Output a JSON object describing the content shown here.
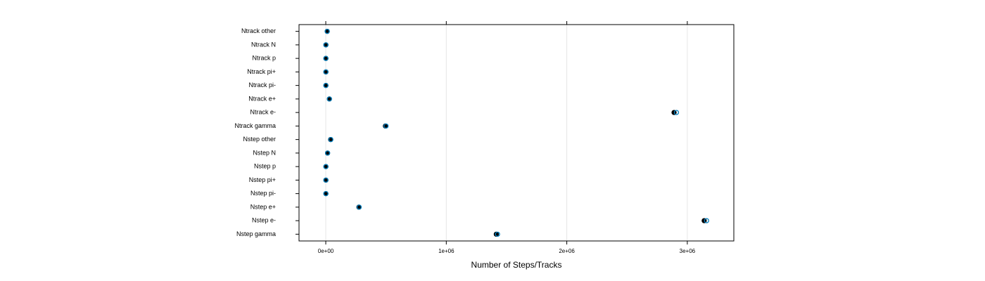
{
  "chart_data": {
    "type": "dotplot",
    "x_label": "Number of Steps/Tracks",
    "categories": [
      "Nstep gamma",
      "Nstep e-",
      "Nstep e+",
      "Nstep pi-",
      "Nstep pi+",
      "Nstep p",
      "Nstep N",
      "Nstep other",
      "Ntrack gamma",
      "Ntrack e-",
      "Ntrack e+",
      "Ntrack pi-",
      "Ntrack pi+",
      "Ntrack p",
      "Ntrack N",
      "Ntrack other"
    ],
    "series": [
      {
        "color": "#000000",
        "values": [
          1415000,
          3140000,
          275000,
          1000,
          1000,
          1000,
          15000,
          40000,
          495000,
          2890000,
          30000,
          1000,
          1000,
          1000,
          1000,
          12000
        ]
      },
      {
        "color": "#0080c0",
        "values": [
          1425000,
          3160000,
          277000,
          1000,
          1000,
          1000,
          15000,
          42000,
          500000,
          2910000,
          30000,
          1000,
          1000,
          1000,
          1000,
          12000
        ]
      }
    ],
    "xlim": [
      -222000,
      3386000
    ],
    "xticks": [
      {
        "value": 0,
        "label": "0e+00"
      },
      {
        "value": 1000000,
        "label": "1e+06"
      },
      {
        "value": 2000000,
        "label": "2e+06"
      },
      {
        "value": 3000000,
        "label": "3e+06"
      }
    ],
    "grid": true
  }
}
